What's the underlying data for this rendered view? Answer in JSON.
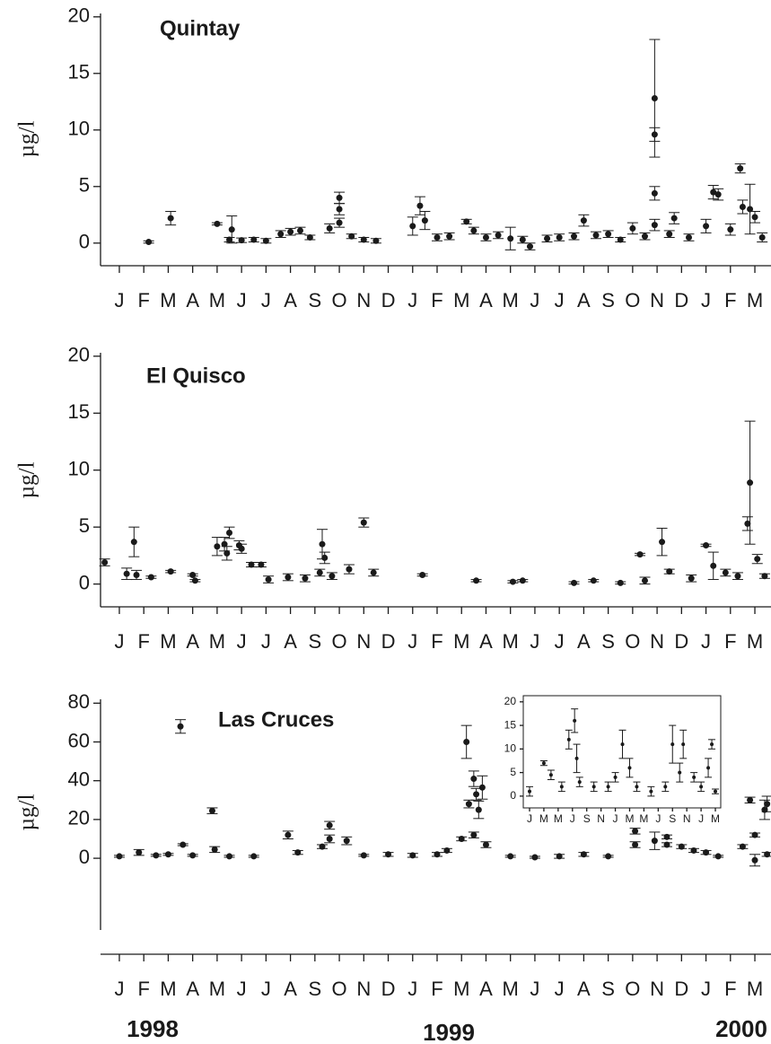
{
  "chart_data": [
    {
      "type": "scatter",
      "title": "Quintay",
      "ylabel": "µg/l",
      "color": "#1a1a1a",
      "xlim": [
        0.23,
        27.66
      ],
      "ylim": [
        -2,
        20.3
      ],
      "yticks": [
        0,
        5,
        10,
        15,
        20
      ],
      "xticks": [
        {
          "value": 1,
          "label": "J"
        },
        {
          "value": 2,
          "label": "F"
        },
        {
          "value": 3,
          "label": "M"
        },
        {
          "value": 4,
          "label": "A"
        },
        {
          "value": 5,
          "label": "M"
        },
        {
          "value": 6,
          "label": "J"
        },
        {
          "value": 7,
          "label": "J"
        },
        {
          "value": 8,
          "label": "A"
        },
        {
          "value": 9,
          "label": "S"
        },
        {
          "value": 10,
          "label": "O"
        },
        {
          "value": 11,
          "label": "N"
        },
        {
          "value": 12,
          "label": "D"
        },
        {
          "value": 13,
          "label": "J"
        },
        {
          "value": 14,
          "label": "F"
        },
        {
          "value": 15,
          "label": "M"
        },
        {
          "value": 16,
          "label": "A"
        },
        {
          "value": 17,
          "label": "M"
        },
        {
          "value": 18,
          "label": "J"
        },
        {
          "value": 19,
          "label": "J"
        },
        {
          "value": 20,
          "label": "A"
        },
        {
          "value": 21,
          "label": "S"
        },
        {
          "value": 22,
          "label": "O"
        },
        {
          "value": 23,
          "label": "N"
        },
        {
          "value": 24,
          "label": "D"
        },
        {
          "value": 25,
          "label": "J"
        },
        {
          "value": 26,
          "label": "F"
        },
        {
          "value": 27,
          "label": "M"
        }
      ],
      "x": [
        2.2,
        3.1,
        5.0,
        5.6,
        5.5,
        6.0,
        6.5,
        7.0,
        7.6,
        8.0,
        8.4,
        8.8,
        9.6,
        10.0,
        10.0,
        10.0,
        10.5,
        11.0,
        11.5,
        13.0,
        13.3,
        13.5,
        14.0,
        14.5,
        15.2,
        15.5,
        16.0,
        16.5,
        17.0,
        17.5,
        17.8,
        18.5,
        19.0,
        19.6,
        20.0,
        20.5,
        21.0,
        21.5,
        22.0,
        22.5,
        22.9,
        22.9,
        22.9,
        22.9,
        23.5,
        23.7,
        24.3,
        25.0,
        25.3,
        25.5,
        26.0,
        26.4,
        26.5,
        26.8,
        27.0,
        27.3
      ],
      "values": [
        0.1,
        2.2,
        1.7,
        1.2,
        0.3,
        0.25,
        0.3,
        0.2,
        0.8,
        1.0,
        1.1,
        0.5,
        1.3,
        4.0,
        3.0,
        1.8,
        0.6,
        0.3,
        0.2,
        1.5,
        3.3,
        2.0,
        0.5,
        0.6,
        1.9,
        1.1,
        0.5,
        0.7,
        0.4,
        0.3,
        -0.3,
        0.4,
        0.5,
        0.6,
        2.0,
        0.7,
        0.8,
        0.3,
        1.3,
        0.6,
        12.8,
        9.6,
        4.4,
        1.6,
        0.8,
        2.2,
        0.5,
        1.5,
        4.5,
        4.3,
        1.2,
        6.6,
        3.2,
        3.0,
        2.3,
        0.5
      ],
      "errors": [
        0.1,
        0.6,
        0.1,
        1.2,
        0.2,
        0.2,
        0.2,
        0.2,
        0.3,
        0.3,
        0.3,
        0.2,
        0.4,
        0.5,
        0.5,
        0.4,
        0.2,
        0.2,
        0.2,
        0.8,
        0.8,
        0.8,
        0.3,
        0.3,
        0.2,
        0.3,
        0.3,
        0.3,
        1.0,
        0.3,
        0.3,
        0.3,
        0.3,
        0.3,
        0.5,
        0.3,
        0.3,
        0.2,
        0.5,
        0.3,
        5.2,
        0.6,
        0.6,
        0.5,
        0.3,
        0.5,
        0.3,
        0.6,
        0.6,
        0.5,
        0.5,
        0.4,
        0.6,
        2.2,
        0.5,
        0.4
      ]
    },
    {
      "type": "scatter",
      "title": "El Quisco",
      "ylabel": "µg/l",
      "color": "#1a1a1a",
      "xlim": [
        0.23,
        27.66
      ],
      "ylim": [
        -2,
        20.3
      ],
      "yticks": [
        0,
        5,
        10,
        15,
        20
      ],
      "xticks": [
        {
          "value": 1,
          "label": "J"
        },
        {
          "value": 2,
          "label": "F"
        },
        {
          "value": 3,
          "label": "M"
        },
        {
          "value": 4,
          "label": "A"
        },
        {
          "value": 5,
          "label": "M"
        },
        {
          "value": 6,
          "label": "J"
        },
        {
          "value": 7,
          "label": "J"
        },
        {
          "value": 8,
          "label": "A"
        },
        {
          "value": 9,
          "label": "S"
        },
        {
          "value": 10,
          "label": "O"
        },
        {
          "value": 11,
          "label": "N"
        },
        {
          "value": 12,
          "label": "D"
        },
        {
          "value": 13,
          "label": "J"
        },
        {
          "value": 14,
          "label": "F"
        },
        {
          "value": 15,
          "label": "M"
        },
        {
          "value": 16,
          "label": "A"
        },
        {
          "value": 17,
          "label": "M"
        },
        {
          "value": 18,
          "label": "J"
        },
        {
          "value": 19,
          "label": "J"
        },
        {
          "value": 20,
          "label": "A"
        },
        {
          "value": 21,
          "label": "S"
        },
        {
          "value": 22,
          "label": "O"
        },
        {
          "value": 23,
          "label": "N"
        },
        {
          "value": 24,
          "label": "D"
        },
        {
          "value": 25,
          "label": "J"
        },
        {
          "value": 26,
          "label": "F"
        },
        {
          "value": 27,
          "label": "M"
        }
      ],
      "x": [
        0.4,
        1.3,
        1.6,
        1.7,
        2.3,
        3.1,
        4.0,
        4.1,
        5.0,
        5.3,
        5.4,
        5.5,
        5.9,
        6.0,
        6.4,
        6.8,
        7.1,
        7.9,
        8.6,
        9.2,
        9.3,
        9.4,
        9.7,
        10.4,
        11.0,
        11.4,
        13.4,
        15.6,
        17.1,
        17.5,
        19.6,
        20.4,
        21.5,
        22.3,
        22.5,
        23.2,
        23.5,
        24.4,
        25.0,
        25.3,
        25.8,
        26.3,
        26.7,
        26.8,
        27.1,
        27.4
      ],
      "values": [
        1.9,
        0.9,
        3.7,
        0.8,
        0.6,
        1.1,
        0.8,
        0.3,
        3.3,
        3.5,
        2.7,
        4.5,
        3.4,
        3.1,
        1.7,
        1.7,
        0.4,
        0.6,
        0.5,
        1.0,
        3.5,
        2.3,
        0.7,
        1.3,
        5.4,
        1.0,
        0.8,
        0.3,
        0.2,
        0.3,
        0.1,
        0.3,
        0.1,
        2.6,
        0.3,
        3.7,
        1.1,
        0.5,
        3.4,
        1.6,
        1.0,
        0.7,
        5.3,
        8.9,
        2.2,
        0.7
      ],
      "errors": [
        0.3,
        0.5,
        1.3,
        0.4,
        0.1,
        0.1,
        0.1,
        0.1,
        0.8,
        0.6,
        0.6,
        0.5,
        0.4,
        0.4,
        0.2,
        0.2,
        0.3,
        0.3,
        0.3,
        0.3,
        1.3,
        0.5,
        0.3,
        0.4,
        0.4,
        0.3,
        0.1,
        0.1,
        0.1,
        0.1,
        0.1,
        0.1,
        0.1,
        0.1,
        0.3,
        1.2,
        0.2,
        0.3,
        0.1,
        1.2,
        0.3,
        0.3,
        0.6,
        5.4,
        0.4,
        0.2
      ]
    },
    {
      "type": "scatter",
      "title": "Las Cruces",
      "ylabel": "µg/l",
      "color": "#1a1a1a",
      "annotations": [
        "1998",
        "1999",
        "2000"
      ],
      "xlim": [
        0.23,
        27.66
      ],
      "ylim": [
        -37,
        82
      ],
      "yticks": [
        0,
        20,
        40,
        60,
        80
      ],
      "xticks": [
        {
          "value": 1,
          "label": "J"
        },
        {
          "value": 2,
          "label": "F"
        },
        {
          "value": 3,
          "label": "M"
        },
        {
          "value": 4,
          "label": "A"
        },
        {
          "value": 5,
          "label": "M"
        },
        {
          "value": 6,
          "label": "J"
        },
        {
          "value": 7,
          "label": "J"
        },
        {
          "value": 8,
          "label": "A"
        },
        {
          "value": 9,
          "label": "S"
        },
        {
          "value": 10,
          "label": "O"
        },
        {
          "value": 11,
          "label": "N"
        },
        {
          "value": 12,
          "label": "D"
        },
        {
          "value": 13,
          "label": "J"
        },
        {
          "value": 14,
          "label": "F"
        },
        {
          "value": 15,
          "label": "M"
        },
        {
          "value": 16,
          "label": "A"
        },
        {
          "value": 17,
          "label": "M"
        },
        {
          "value": 18,
          "label": "J"
        },
        {
          "value": 19,
          "label": "J"
        },
        {
          "value": 20,
          "label": "A"
        },
        {
          "value": 21,
          "label": "S"
        },
        {
          "value": 22,
          "label": "O"
        },
        {
          "value": 23,
          "label": "N"
        },
        {
          "value": 24,
          "label": "D"
        },
        {
          "value": 25,
          "label": "J"
        },
        {
          "value": 26,
          "label": "F"
        },
        {
          "value": 27,
          "label": "M"
        }
      ],
      "x": [
        1,
        1.8,
        2.5,
        3.0,
        3.5,
        3.6,
        4.0,
        4.8,
        4.9,
        5.5,
        6.5,
        7.9,
        8.3,
        9.3,
        9.6,
        9.6,
        10.3,
        11,
        12,
        13,
        14,
        14.4,
        15.0,
        15.2,
        15.3,
        15.5,
        15.6,
        15.7,
        15.85,
        15.5,
        16,
        17,
        18,
        19,
        20,
        21,
        22.1,
        22.1,
        22.9,
        23.4,
        23.4,
        24,
        24.5,
        25,
        25.5,
        26.5,
        27.0,
        26.8,
        27.0,
        27.4,
        27.5,
        27.5
      ],
      "values": [
        1,
        3,
        1.5,
        2,
        68,
        7,
        1.5,
        24.5,
        4.5,
        1,
        1,
        12,
        3,
        6,
        17,
        10,
        9,
        1.5,
        2,
        1.5,
        2,
        4,
        10,
        60,
        28,
        41,
        33,
        25,
        36.5,
        12,
        7,
        1,
        0.5,
        1,
        2,
        1,
        14,
        7,
        9,
        11,
        7,
        6,
        4,
        3,
        1,
        6,
        -1,
        30,
        12,
        25,
        28,
        2
      ],
      "errors": [
        0.5,
        1.5,
        0.5,
        0.5,
        3.5,
        0.5,
        0.5,
        1.5,
        1.5,
        0.5,
        0.5,
        2,
        1,
        1,
        2,
        2,
        2,
        0.5,
        1,
        1,
        1,
        1,
        1,
        8.5,
        2,
        4,
        3,
        4.5,
        6,
        1.5,
        1.5,
        0.5,
        0.5,
        1,
        1,
        0.5,
        1.5,
        1.5,
        4.5,
        1,
        1,
        1,
        1,
        1,
        0.5,
        1,
        3,
        1.5,
        1,
        5,
        4,
        1
      ]
    },
    {
      "type": "scatter",
      "color": "#1a1a1a",
      "xlim": [
        0.12,
        27.75
      ],
      "ylim": [
        -2.5,
        21.3
      ],
      "yticks": [
        0,
        5,
        10,
        15,
        20
      ],
      "xticks": [
        {
          "value": 1,
          "label": "J"
        },
        {
          "value": 3,
          "label": "M"
        },
        {
          "value": 5,
          "label": "M"
        },
        {
          "value": 7,
          "label": "J"
        },
        {
          "value": 9,
          "label": "S"
        },
        {
          "value": 11,
          "label": "N"
        },
        {
          "value": 13,
          "label": "J"
        },
        {
          "value": 15,
          "label": "M"
        },
        {
          "value": 17,
          "label": "M"
        },
        {
          "value": 19,
          "label": "J"
        },
        {
          "value": 21,
          "label": "S"
        },
        {
          "value": 23,
          "label": "N"
        },
        {
          "value": 25,
          "label": "J"
        },
        {
          "value": 27,
          "label": "M"
        }
      ],
      "x": [
        1,
        3,
        4,
        5.5,
        6.5,
        7.3,
        7.6,
        8,
        10,
        12,
        13,
        14,
        15,
        16,
        18,
        20,
        21,
        22,
        22.5,
        24,
        25,
        26,
        26.5,
        27
      ],
      "values": [
        1,
        7,
        4.5,
        2,
        12,
        16,
        8,
        3,
        2,
        2,
        4,
        11,
        6,
        2,
        1,
        2,
        11,
        5,
        11,
        4,
        2,
        6,
        11,
        1
      ],
      "errors": [
        1,
        0.5,
        1,
        1,
        2,
        2.5,
        3,
        1,
        1,
        1,
        1,
        3,
        2,
        1,
        1,
        1,
        4,
        2,
        3,
        1,
        1,
        2,
        1,
        0.5
      ]
    }
  ]
}
